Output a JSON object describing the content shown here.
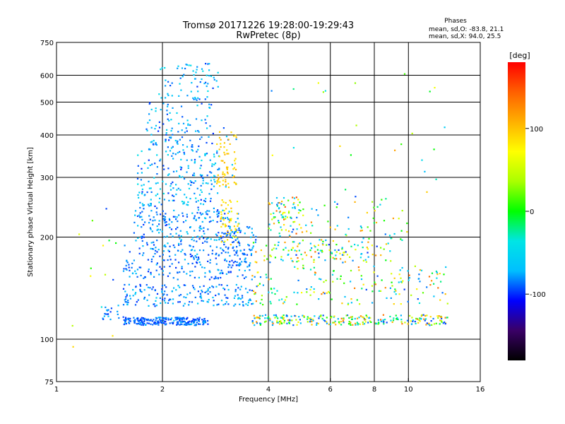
{
  "chart_data": {
    "type": "scatter",
    "title": "Tromsø 20171226 19:28:00-19:29:43",
    "subtitle": "RwPretec (8p)",
    "xlabel": "Frequency [MHz]",
    "ylabel": "Stationary phase Virtual Height [km]",
    "x_scale": "log",
    "y_scale": "log",
    "xlim": [
      1,
      16
    ],
    "ylim": [
      75,
      750
    ],
    "x_ticks": [
      1,
      2,
      4,
      6,
      8,
      10,
      16
    ],
    "y_ticks": [
      75,
      100,
      200,
      300,
      400,
      500,
      600,
      750
    ],
    "grid_x": [
      2,
      4,
      6,
      8,
      10
    ],
    "grid_y": [
      100,
      200,
      300,
      400,
      500,
      600
    ],
    "grid": true,
    "phases": {
      "title": "Phases",
      "line_o": "mean, sd,O: -83.8, 21.1",
      "line_x": "mean, sd,X:  94.0, 25.5"
    },
    "colorbar": {
      "label": "[deg]",
      "range": [
        -180,
        180
      ],
      "ticks": [
        100,
        0,
        -100
      ],
      "stops": [
        "#000000",
        "#3a0066",
        "#0000ff",
        "#00bfff",
        "#00e5e5",
        "#00ff00",
        "#aaff00",
        "#ffff00",
        "#ffb000",
        "#ff6000",
        "#ff0000"
      ]
    },
    "clusters": [
      {
        "name": "",
        "x": [
          1.55,
          2.7
        ],
        "y": [
          110,
          116
        ],
        "phase": [
          -100,
          -80
        ],
        "n": 220
      },
      {
        "name": "",
        "x": [
          1.35,
          1.55
        ],
        "y": [
          114,
          126
        ],
        "phase": [
          -100,
          -70
        ],
        "n": 20
      },
      {
        "name": "",
        "x": [
          1.55,
          3.6
        ],
        "y": [
          125,
          145
        ],
        "phase": [
          -100,
          -60
        ],
        "n": 180
      },
      {
        "name": "",
        "x": [
          1.55,
          3.6
        ],
        "y": [
          150,
          185
        ],
        "phase": [
          -100,
          -70
        ],
        "n": 200
      },
      {
        "name": "",
        "x": [
          1.65,
          3.3
        ],
        "y": [
          185,
          240
        ],
        "phase": [
          -100,
          -60
        ],
        "n": 220
      },
      {
        "name": "",
        "x": [
          1.7,
          2.9
        ],
        "y": [
          240,
          360
        ],
        "phase": [
          -100,
          -40
        ],
        "n": 200
      },
      {
        "name": "",
        "x": [
          1.8,
          2.8
        ],
        "y": [
          360,
          520
        ],
        "phase": [
          -100,
          -50
        ],
        "n": 120
      },
      {
        "name": "",
        "x": [
          1.95,
          2.9
        ],
        "y": [
          520,
          650
        ],
        "phase": [
          -100,
          -40
        ],
        "n": 60
      },
      {
        "name": "",
        "x": [
          2.85,
          3.25
        ],
        "y": [
          280,
          420
        ],
        "phase": [
          80,
          110
        ],
        "n": 70
      },
      {
        "name": "",
        "x": [
          2.9,
          3.3
        ],
        "y": [
          190,
          260
        ],
        "phase": [
          60,
          110
        ],
        "n": 55
      },
      {
        "name": "",
        "x": [
          3.0,
          3.7
        ],
        "y": [
          165,
          215
        ],
        "phase": [
          -100,
          -70
        ],
        "n": 60
      },
      {
        "name": "",
        "x": [
          3.6,
          13.0
        ],
        "y": [
          110,
          118
        ],
        "phase": [
          -100,
          140
        ],
        "n": 260
      },
      {
        "name": "",
        "x": [
          3.6,
          13.0
        ],
        "y": [
          125,
          165
        ],
        "phase": [
          -100,
          140
        ],
        "n": 170
      },
      {
        "name": "",
        "x": [
          3.6,
          9.0
        ],
        "y": [
          168,
          195
        ],
        "phase": [
          -100,
          140
        ],
        "n": 130
      },
      {
        "name": "",
        "x": [
          4.0,
          5.0
        ],
        "y": [
          200,
          265
        ],
        "phase": [
          -100,
          150
        ],
        "n": 80
      },
      {
        "name": "",
        "x": [
          5.0,
          10.0
        ],
        "y": [
          195,
          260
        ],
        "phase": [
          -100,
          130
        ],
        "n": 60
      },
      {
        "name": "",
        "x": [
          4.0,
          13.0
        ],
        "y": [
          260,
          650
        ],
        "phase": [
          -100,
          120
        ],
        "n": 25
      },
      {
        "name": "",
        "x": [
          1.1,
          1.6
        ],
        "y": [
          85,
          260
        ],
        "phase": [
          -100,
          90
        ],
        "n": 15
      }
    ],
    "point_seed": 20171226
  }
}
